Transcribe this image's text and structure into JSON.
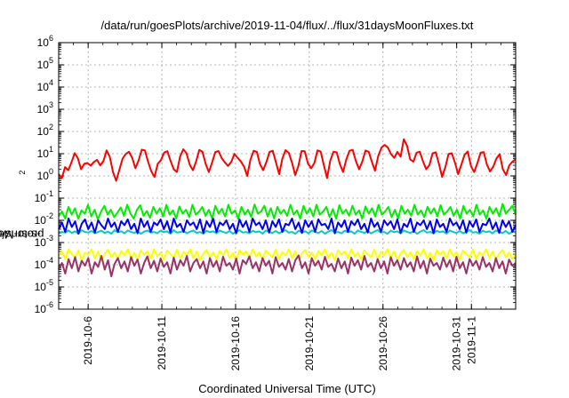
{
  "chart_data": {
    "type": "line",
    "title": "/data/run/goesPlots/archive/2019-11-04/flux/../flux/31daysMoonFluxes.txt",
    "xlabel": "Coordinated Universal Time (UTC)",
    "ylabel": {
      "prefix": "protons/cm",
      "sup": "2",
      "suffix": "-s-sr-MeV"
    },
    "yscale": "log",
    "ylim": [
      "1e-6",
      "1e6"
    ],
    "ytick_labels": [
      {
        "base": "10",
        "exp": "-6"
      },
      {
        "base": "10",
        "exp": "-5"
      },
      {
        "base": "10",
        "exp": "-4"
      },
      {
        "base": "10",
        "exp": "-3"
      },
      {
        "base": "10",
        "exp": "-2"
      },
      {
        "base": "10",
        "exp": "-1"
      },
      {
        "base": "10",
        "exp": "0"
      },
      {
        "base": "10",
        "exp": "1"
      },
      {
        "base": "10",
        "exp": "2"
      },
      {
        "base": "10",
        "exp": "3"
      },
      {
        "base": "10",
        "exp": "4"
      },
      {
        "base": "10",
        "exp": "5"
      },
      {
        "base": "10",
        "exp": "6"
      }
    ],
    "xlim": [
      "2019-10-04",
      "2019-11-04"
    ],
    "xtick_labels": [
      "2019-10-6",
      "2019-10-11",
      "2019-10-16",
      "2019-10-21",
      "2019-10-26",
      "2019-10-31",
      "2019-11-1"
    ],
    "xtick_dates": [
      "2019-10-06",
      "2019-10-11",
      "2019-10-16",
      "2019-10-21",
      "2019-10-26",
      "2019-10-31",
      "2019-11-01"
    ],
    "grid": true,
    "series": [
      {
        "color": "#ff0000",
        "min": 0.4,
        "max": 60,
        "values": [
          1.2,
          0.8,
          2.5,
          1.8,
          4.1,
          10.5,
          6.2,
          2.0,
          3.5,
          3.8,
          2.9,
          4.2,
          5.3,
          3.0,
          4.6,
          14.0,
          7.1,
          1.5,
          0.6,
          1.9,
          6.0,
          9.8,
          12.1,
          6.5,
          2.2,
          5.0,
          15.2,
          14.0,
          4.3,
          1.6,
          0.9,
          3.5,
          5.1,
          11.2,
          13.0,
          4.8,
          2.0,
          1.5,
          7.5,
          15.8,
          10.4,
          3.2,
          1.8,
          4.5,
          14.9,
          12.3,
          3.5,
          1.5,
          3.9,
          11.8,
          13.2,
          6.4,
          4.1,
          2.8,
          4.3,
          9.8,
          6.5,
          4.5,
          2.6,
          1.0,
          5.4,
          13.6,
          12.0,
          3.4,
          1.8,
          4.2,
          12.0,
          13.5,
          4.0,
          1.2,
          6.1,
          14.5,
          11.0,
          4.0,
          1.1,
          2.8,
          13.2,
          12.8,
          3.6,
          2.2,
          3.8,
          14.1,
          12.5,
          3.0,
          0.8,
          4.9,
          12.3,
          11.5,
          3.4,
          1.5,
          5.5,
          13.5,
          14.8,
          4.6,
          2.0,
          4.4,
          13.9,
          12.2,
          4.3,
          1.7,
          7.8,
          18.5,
          25.0,
          19.2,
          9.6,
          6.5,
          12.0,
          7.4,
          45.0,
          23.0,
          5.5,
          4.4,
          11.2,
          12.1,
          4.5,
          2.0,
          3.1,
          10.4,
          11.6,
          3.5,
          0.9,
          2.5,
          9.6,
          10.5,
          4.0,
          1.2,
          3.2,
          8.9,
          12.6,
          2.8,
          1.5,
          3.7,
          11.1,
          11.8,
          3.2,
          1.6,
          2.6,
          6.1,
          9.5,
          2.0,
          1.1,
          3.0,
          4.4,
          5.6
        ]
      },
      {
        "color": "#00ee00",
        "min": 0.001,
        "max": 0.1,
        "values": [
          0.015,
          0.025,
          0.012,
          0.04,
          0.018,
          0.035,
          0.012,
          0.028,
          0.02,
          0.05,
          0.015,
          0.03,
          0.011,
          0.025,
          0.045,
          0.018,
          0.03,
          0.014,
          0.022,
          0.038,
          0.016,
          0.05,
          0.02,
          0.012,
          0.03,
          0.048,
          0.016,
          0.026,
          0.013,
          0.04,
          0.02,
          0.035,
          0.015,
          0.05,
          0.018,
          0.028,
          0.012,
          0.042,
          0.02,
          0.03,
          0.014,
          0.05,
          0.018,
          0.025,
          0.04,
          0.016,
          0.03,
          0.012,
          0.045,
          0.02,
          0.033,
          0.015,
          0.05,
          0.02,
          0.028,
          0.012,
          0.04,
          0.018,
          0.03,
          0.014,
          0.052,
          0.02,
          0.025,
          0.045,
          0.015,
          0.035,
          0.012,
          0.04,
          0.02,
          0.03,
          0.016,
          0.05,
          0.018,
          0.028,
          0.012,
          0.045,
          0.02,
          0.035,
          0.015,
          0.05,
          0.018,
          0.025,
          0.04,
          0.014,
          0.032,
          0.012,
          0.048,
          0.02,
          0.03,
          0.016,
          0.045,
          0.018,
          0.028,
          0.012,
          0.042,
          0.02,
          0.035,
          0.015,
          0.05,
          0.018,
          0.025,
          0.04,
          0.014,
          0.03,
          0.012,
          0.045,
          0.02,
          0.03,
          0.016,
          0.05,
          0.018,
          0.028,
          0.014,
          0.04,
          0.02,
          0.035,
          0.015,
          0.048,
          0.018,
          0.025,
          0.04,
          0.016,
          0.03,
          0.012,
          0.045,
          0.02,
          0.03,
          0.015,
          0.05,
          0.018,
          0.028,
          0.012,
          0.04,
          0.02,
          0.035,
          0.015,
          0.055,
          0.02,
          0.03,
          0.045,
          0.018
        ]
      },
      {
        "color": "#00cccc",
        "min": 0.0008,
        "max": 0.01,
        "values": [
          0.0025,
          0.003,
          0.0028,
          0.0035,
          0.0027,
          0.0032,
          0.0025,
          0.0036,
          0.003,
          0.0028,
          0.0033,
          0.0026,
          0.003,
          0.0034,
          0.0027,
          0.0031,
          0.0025,
          0.0036,
          0.0029,
          0.0032,
          0.0026,
          0.0035,
          0.003,
          0.0027,
          0.0033,
          0.0025,
          0.0031,
          0.0035,
          0.0028,
          0.003,
          0.0026,
          0.0034,
          0.0029,
          0.0032,
          0.0025,
          0.0036,
          0.0028,
          0.003,
          0.0033,
          0.0026,
          0.0031,
          0.0035,
          0.0027,
          0.003,
          0.0025,
          0.0034,
          0.0029,
          0.0032,
          0.0026,
          0.0035,
          0.003,
          0.0027,
          0.0033,
          0.0025,
          0.0031,
          0.0036,
          0.0028,
          0.003,
          0.0026,
          0.0034,
          0.0029,
          0.0032,
          0.0025,
          0.0035,
          0.003,
          0.0027,
          0.0033,
          0.0026,
          0.0031,
          0.0036,
          0.0028,
          0.003,
          0.0025,
          0.0034,
          0.0029,
          0.0032,
          0.0026,
          0.0035,
          0.003,
          0.0027,
          0.0033,
          0.0025,
          0.0031,
          0.0036,
          0.0028,
          0.003,
          0.0026,
          0.0034,
          0.0029,
          0.0032,
          0.0025,
          0.0035,
          0.003,
          0.0027,
          0.0033,
          0.0026,
          0.0031,
          0.0036,
          0.0028,
          0.003,
          0.0025,
          0.0034,
          0.0029,
          0.0032,
          0.0026,
          0.0035,
          0.003,
          0.0027,
          0.0033,
          0.0025,
          0.0031,
          0.0036,
          0.0028,
          0.003,
          0.0026,
          0.0034,
          0.0029,
          0.0032,
          0.0025,
          0.0035,
          0.003,
          0.0027,
          0.0033,
          0.0026,
          0.0031,
          0.0036,
          0.0028,
          0.003,
          0.0025,
          0.0034,
          0.0029,
          0.0032,
          0.0026,
          0.0035,
          0.003,
          0.0027,
          0.0033,
          0.0025,
          0.0031,
          0.003
        ]
      },
      {
        "color": "#0000ee",
        "min": 0.0008,
        "max": 0.03,
        "values": [
          0.004,
          0.008,
          0.003,
          0.012,
          0.005,
          0.009,
          0.0025,
          0.007,
          0.011,
          0.004,
          0.008,
          0.0028,
          0.01,
          0.006,
          0.004,
          0.012,
          0.005,
          0.008,
          0.003,
          0.009,
          0.006,
          0.011,
          0.004,
          0.007,
          0.0026,
          0.012,
          0.005,
          0.009,
          0.003,
          0.008,
          0.006,
          0.011,
          0.004,
          0.009,
          0.0028,
          0.012,
          0.005,
          0.007,
          0.003,
          0.01,
          0.006,
          0.008,
          0.004,
          0.011,
          0.0027,
          0.009,
          0.005,
          0.012,
          0.003,
          0.008,
          0.006,
          0.01,
          0.004,
          0.007,
          0.0026,
          0.011,
          0.005,
          0.009,
          0.003,
          0.012,
          0.006,
          0.008,
          0.004,
          0.01,
          0.0028,
          0.009,
          0.005,
          0.011,
          0.003,
          0.007,
          0.006,
          0.012,
          0.004,
          0.008,
          0.0027,
          0.01,
          0.005,
          0.009,
          0.003,
          0.011,
          0.006,
          0.007,
          0.004,
          0.012,
          0.0026,
          0.008,
          0.005,
          0.01,
          0.003,
          0.009,
          0.006,
          0.011,
          0.004,
          0.007,
          0.0028,
          0.012,
          0.005,
          0.008,
          0.003,
          0.01,
          0.006,
          0.009,
          0.004,
          0.011,
          0.0027,
          0.007,
          0.005,
          0.012,
          0.003,
          0.008,
          0.006,
          0.01,
          0.004,
          0.009,
          0.0026,
          0.011,
          0.005,
          0.007,
          0.003,
          0.012,
          0.006,
          0.008,
          0.004,
          0.01,
          0.0028,
          0.009,
          0.005,
          0.011,
          0.003,
          0.007,
          0.006,
          0.012,
          0.004,
          0.008,
          0.0027,
          0.01,
          0.005,
          0.009,
          0.003,
          0.006
        ]
      },
      {
        "color": "#ffff00",
        "min": 5e-05,
        "max": 0.001,
        "values": [
          0.00025,
          0.0004,
          0.00018,
          0.0005,
          0.0003,
          0.00022,
          0.00045,
          0.00016,
          0.00035,
          0.00028,
          0.0005,
          0.0002,
          0.0004,
          0.00015,
          0.0003,
          0.00048,
          0.00022,
          0.00036,
          0.00018,
          0.00042,
          0.00026,
          0.0005,
          0.0002,
          0.00034,
          0.00016,
          0.00045,
          0.00028,
          0.0004,
          0.00019,
          0.0005,
          0.00024,
          0.00036,
          0.00017,
          0.00044,
          0.0003,
          0.00022,
          0.00048,
          0.00018,
          0.00038,
          0.00026,
          0.0005,
          0.0002,
          0.0004,
          0.00016,
          0.00032,
          0.00046,
          0.00022,
          0.00036,
          0.00018,
          0.00042,
          0.00026,
          0.0005,
          0.0002,
          0.00034,
          0.00016,
          0.00045,
          0.00028,
          0.0004,
          0.00019,
          0.0005,
          0.00024,
          0.00036,
          0.00017,
          0.00044,
          0.0003,
          0.00022,
          0.00048,
          0.00018,
          0.00038,
          0.00026,
          0.0005,
          0.0002,
          0.0004,
          0.00016,
          0.00032,
          0.00046,
          0.00022,
          0.00036,
          0.00018,
          0.00042,
          0.00026,
          0.0005,
          0.0002,
          0.00034,
          0.00016,
          0.00045,
          0.00028,
          0.0004,
          0.00019,
          0.0005,
          0.00024,
          0.00036,
          0.00017,
          0.00044,
          0.0003,
          0.00022,
          0.00048,
          0.00018,
          0.00038,
          0.00026,
          0.0005,
          0.0002,
          0.0004,
          0.00016,
          0.00032,
          0.00046,
          0.00022,
          0.00036,
          0.00018,
          0.00042,
          0.00026,
          0.0005,
          0.0002,
          0.00034,
          0.00016,
          0.00045,
          0.00028,
          0.0004,
          0.00019,
          0.0005,
          0.00024,
          0.00036,
          0.00017,
          0.00044,
          0.0003,
          0.00022,
          0.00048,
          0.00018,
          0.00038,
          0.00026,
          0.0005,
          0.0002,
          0.0004,
          0.00016,
          0.00032,
          0.00046,
          0.00022,
          0.00036,
          0.00018,
          0.0003
        ]
      },
      {
        "color": "#993366",
        "min": 1e-05,
        "max": 0.0004,
        "values": [
          6e-05,
          0.00012,
          4e-05,
          0.00018,
          7e-05,
          0.00022,
          5e-05,
          0.00015,
          9e-05,
          0.0002,
          4e-05,
          0.00013,
          8e-05,
          0.00025,
          6e-05,
          0.00016,
          3e-05,
          0.00011,
          0.0002,
          7e-05,
          0.00014,
          5e-05,
          0.00022,
          9e-05,
          0.00017,
          4e-05,
          0.00012,
          0.00024,
          7e-05,
          0.00015,
          5e-05,
          0.00019,
          8e-05,
          0.00013,
          4e-05,
          0.00021,
          6e-05,
          0.00016,
          9e-05,
          0.00025,
          5e-05,
          0.00012,
          0.00018,
          7e-05,
          0.00014,
          4e-05,
          0.0002,
          8e-05,
          0.00015,
          5e-05,
          0.00023,
          9e-05,
          0.00012,
          6e-05,
          0.00019,
          4e-05,
          0.00016,
          0.00011,
          0.00024,
          7e-05,
          0.00013,
          5e-05,
          0.0002,
          9e-05,
          0.00015,
          4e-05,
          0.00022,
          8e-05,
          0.00012,
          6e-05,
          0.00018,
          5e-05,
          0.00016,
          0.00026,
          7e-05,
          0.00013,
          4e-05,
          0.0002,
          9e-05,
          0.00015,
          6e-05,
          0.00023,
          8e-05,
          0.00011,
          5e-05,
          0.00019,
          7e-05,
          0.00014,
          4e-05,
          0.00021,
          9e-05,
          0.00016,
          6e-05,
          0.00025,
          8e-05,
          0.00012,
          5e-05,
          0.00018,
          7e-05,
          0.00014,
          4e-05,
          0.00022,
          9e-05,
          0.00016,
          6e-05,
          0.0002,
          8e-05,
          0.00013,
          5e-05,
          0.00024,
          7e-05,
          0.00015,
          4e-05,
          0.00019,
          9e-05,
          0.00012,
          6e-05,
          0.00021,
          8e-05,
          0.00016,
          5e-05,
          0.00023,
          7e-05,
          0.00013,
          4e-05,
          0.00018,
          9e-05,
          0.00015,
          6e-05,
          0.00022,
          8e-05,
          0.00012,
          5e-05,
          0.0002,
          7e-05,
          0.00014,
          4e-05,
          0.00017,
          9e-05,
          0.00012
        ]
      }
    ]
  }
}
